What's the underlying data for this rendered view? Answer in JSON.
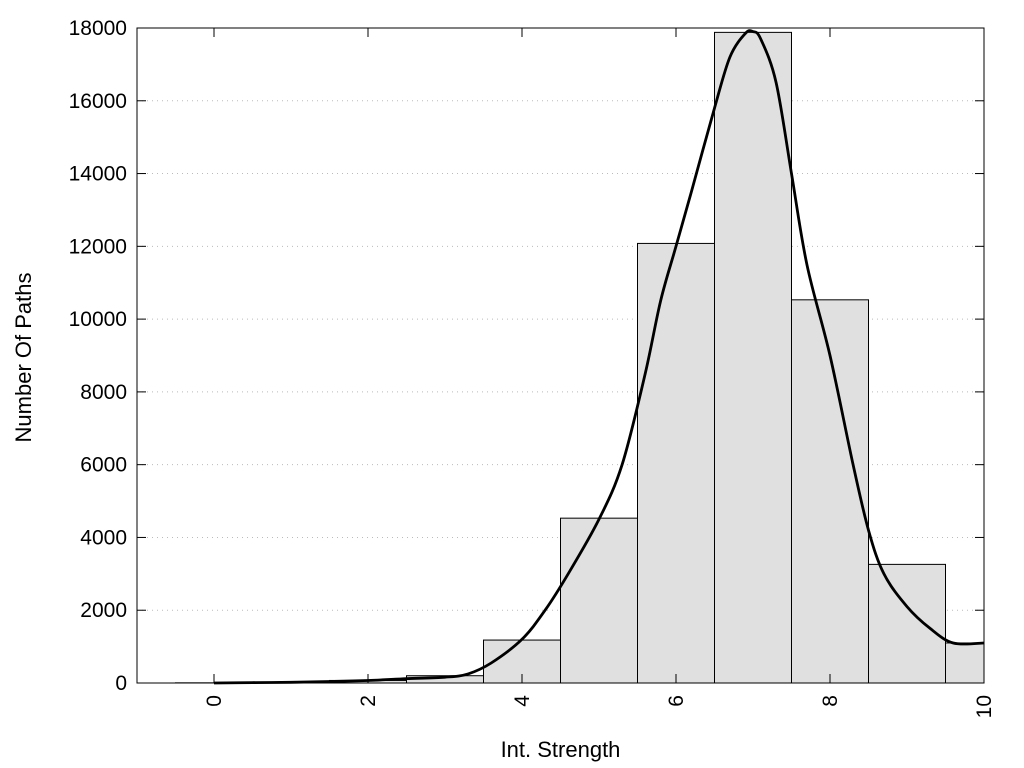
{
  "chart_data": {
    "type": "bar",
    "title": "",
    "xlabel": "Int. Strength",
    "ylabel": "Number Of Paths",
    "xlim": [
      -1,
      10
    ],
    "ylim": [
      0,
      18000
    ],
    "x_ticks": [
      0,
      2,
      4,
      6,
      8,
      10
    ],
    "y_ticks": [
      0,
      2000,
      4000,
      6000,
      8000,
      10000,
      12000,
      14000,
      16000,
      18000
    ],
    "grid": "horizontal dotted",
    "legend": "none",
    "colors": {
      "bar_fill": "#e0e0e0",
      "bar_stroke": "#000000",
      "curve": "#000000",
      "grid": "#bbbbbb"
    },
    "bars": {
      "centers": [
        0,
        1,
        2,
        3,
        4,
        5,
        6,
        7,
        8,
        9,
        10
      ],
      "values": [
        5,
        25,
        70,
        200,
        1180,
        4530,
        12080,
        17880,
        10530,
        3260,
        1100
      ]
    },
    "curve": {
      "x": [
        0,
        0.5,
        1,
        1.5,
        2,
        2.5,
        3,
        3.3,
        3.6,
        4,
        4.3,
        4.6,
        5,
        5.3,
        5.6,
        5.8,
        6,
        6.2,
        6.5,
        6.7,
        6.9,
        7,
        7.1,
        7.3,
        7.5,
        7.7,
        8,
        8.3,
        8.5,
        8.7,
        9,
        9.3,
        9.6,
        10
      ],
      "y": [
        0,
        10,
        20,
        40,
        70,
        120,
        160,
        250,
        550,
        1200,
        2000,
        3000,
        4500,
        6000,
        8500,
        10500,
        12000,
        13500,
        15800,
        17200,
        17850,
        17900,
        17700,
        16500,
        14000,
        11500,
        9000,
        6000,
        4200,
        3000,
        2100,
        1500,
        1100,
        1100
      ]
    }
  }
}
